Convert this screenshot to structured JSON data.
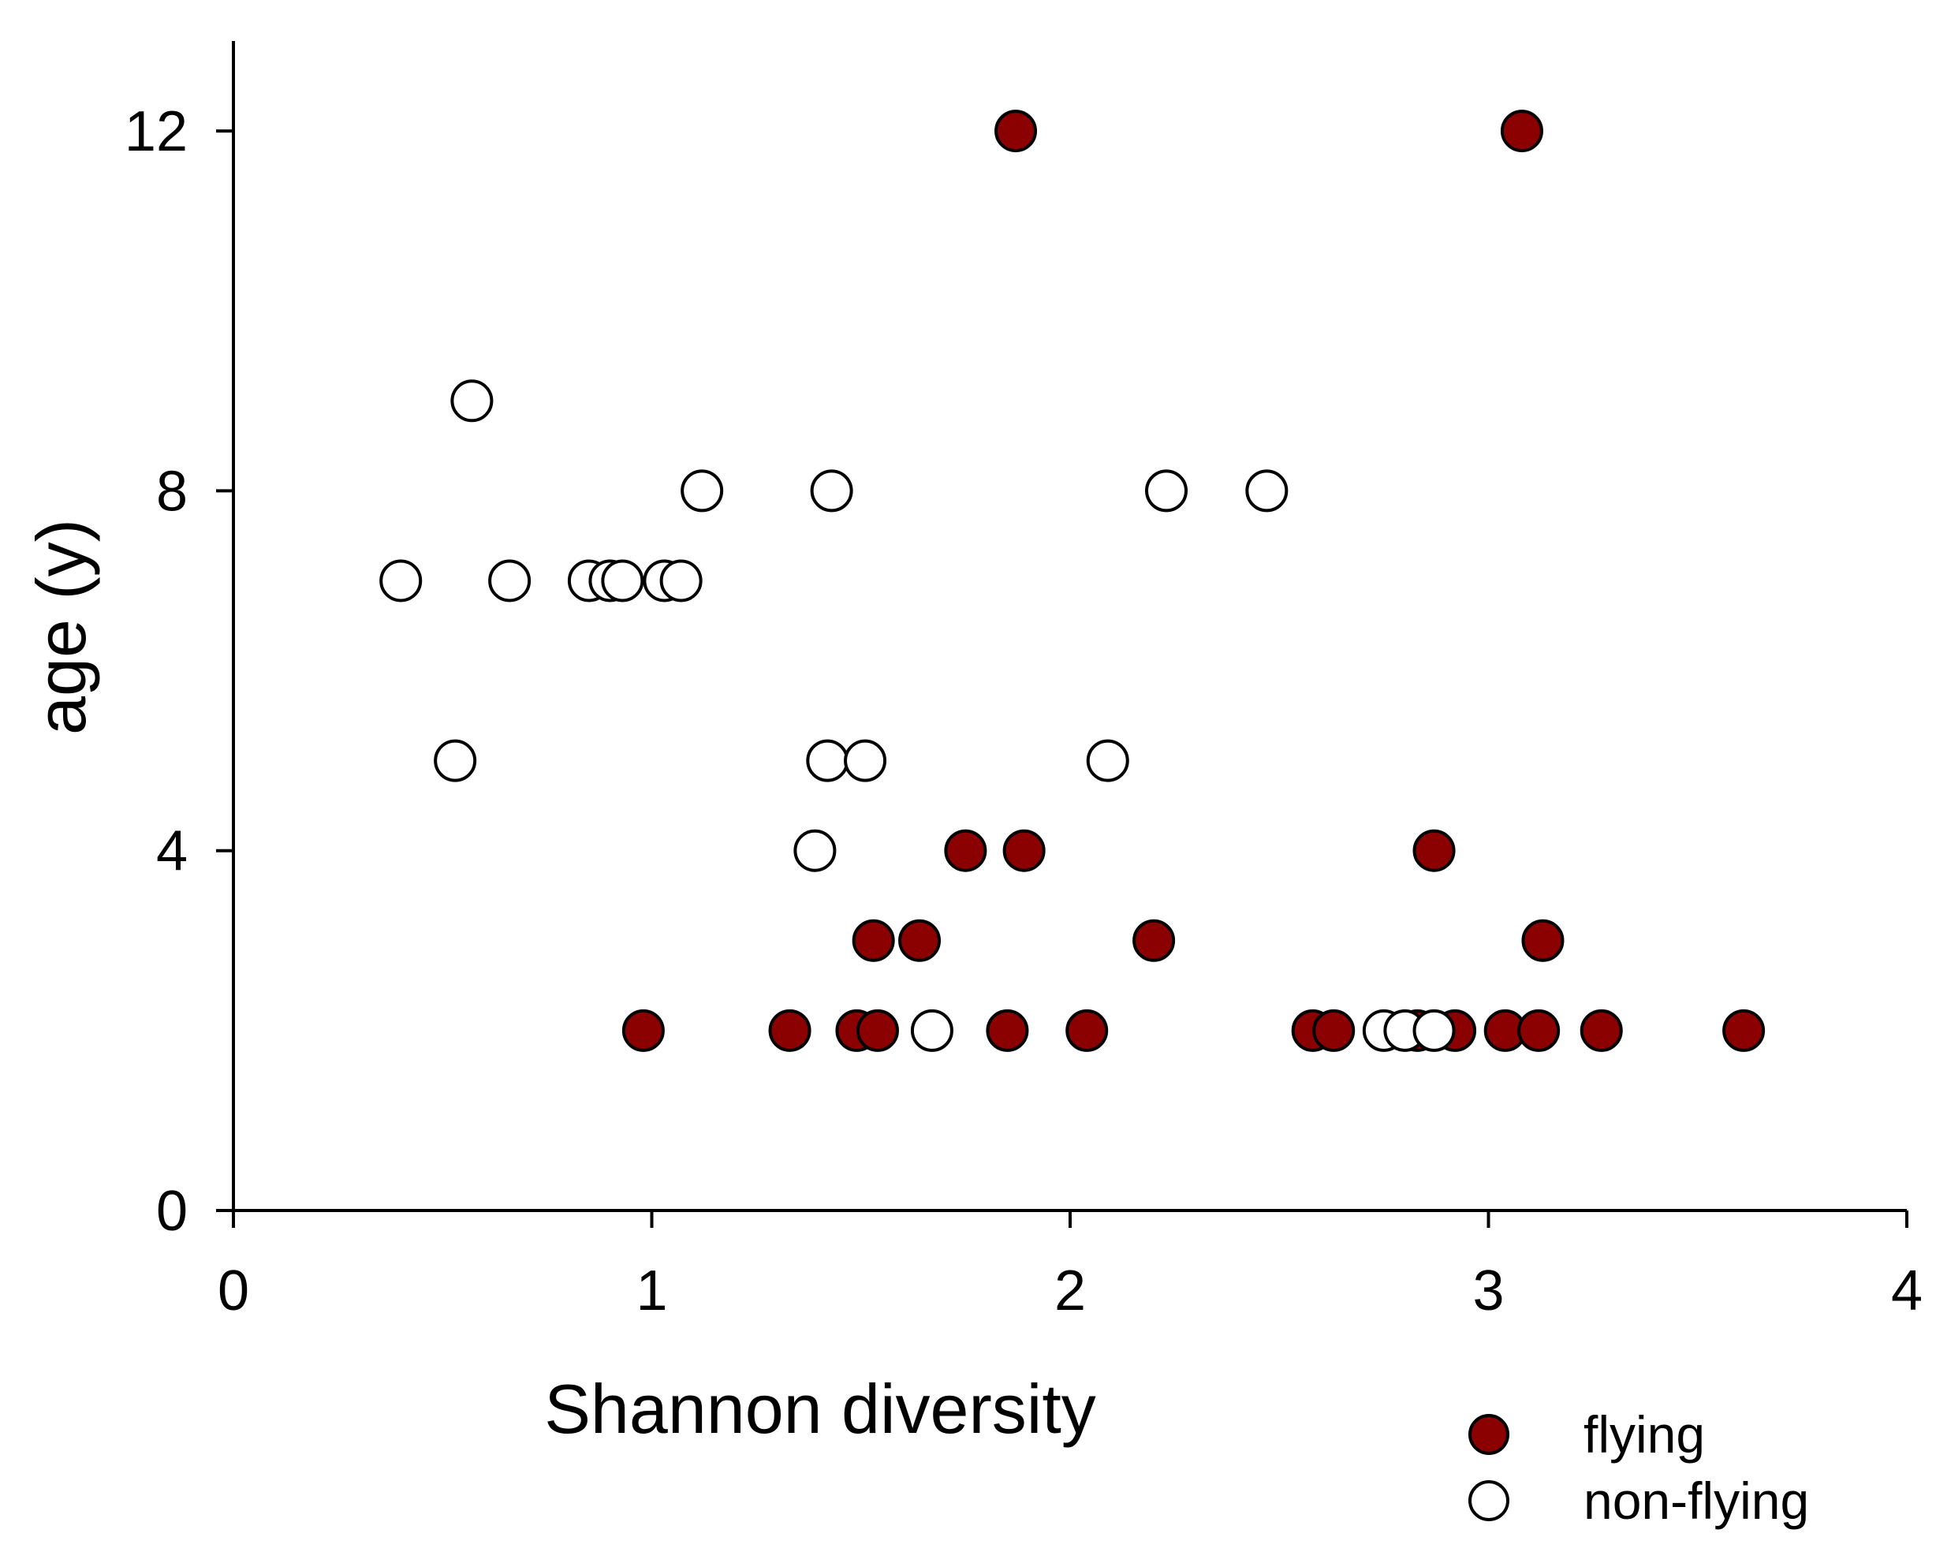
{
  "colors": {
    "flying": "#8b0000",
    "non_flying": "#ffffff",
    "stroke": "#000000"
  },
  "chart_data": {
    "type": "scatter",
    "title": "",
    "xlabel": "Shannon diversity",
    "ylabel": "age (y)",
    "xlim": [
      0,
      4
    ],
    "ylim": [
      0,
      13
    ],
    "xticks": [
      0,
      1,
      2,
      3,
      4
    ],
    "yticks": [
      0,
      4,
      8,
      12
    ],
    "xtick_labels": [
      "0",
      "1",
      "2",
      "3",
      "4"
    ],
    "ytick_labels": [
      "0",
      "4",
      "8",
      "12"
    ],
    "grid": false,
    "legend_position": "bottom-right",
    "series": [
      {
        "name": "flying",
        "label": "flying",
        "fill": "#8b0000",
        "points": [
          {
            "x": 1.87,
            "y": 12
          },
          {
            "x": 3.08,
            "y": 12
          },
          {
            "x": 1.75,
            "y": 4
          },
          {
            "x": 1.89,
            "y": 4
          },
          {
            "x": 2.87,
            "y": 4
          },
          {
            "x": 1.53,
            "y": 3
          },
          {
            "x": 1.64,
            "y": 3
          },
          {
            "x": 2.2,
            "y": 3
          },
          {
            "x": 3.13,
            "y": 3
          },
          {
            "x": 0.98,
            "y": 2
          },
          {
            "x": 1.33,
            "y": 2
          },
          {
            "x": 1.49,
            "y": 2
          },
          {
            "x": 1.54,
            "y": 2
          },
          {
            "x": 1.85,
            "y": 2
          },
          {
            "x": 2.04,
            "y": 2
          },
          {
            "x": 2.58,
            "y": 2
          },
          {
            "x": 2.63,
            "y": 2
          },
          {
            "x": 2.83,
            "y": 2
          },
          {
            "x": 2.92,
            "y": 2
          },
          {
            "x": 3.04,
            "y": 2
          },
          {
            "x": 3.12,
            "y": 2
          },
          {
            "x": 3.27,
            "y": 2
          },
          {
            "x": 3.61,
            "y": 2
          }
        ]
      },
      {
        "name": "non-flying",
        "label": "non-flying",
        "fill": "#ffffff",
        "points": [
          {
            "x": 0.57,
            "y": 9
          },
          {
            "x": 1.12,
            "y": 8
          },
          {
            "x": 1.43,
            "y": 8
          },
          {
            "x": 2.23,
            "y": 8
          },
          {
            "x": 2.47,
            "y": 8
          },
          {
            "x": 0.4,
            "y": 7
          },
          {
            "x": 0.66,
            "y": 7
          },
          {
            "x": 0.85,
            "y": 7
          },
          {
            "x": 0.9,
            "y": 7
          },
          {
            "x": 0.93,
            "y": 7
          },
          {
            "x": 1.03,
            "y": 7
          },
          {
            "x": 1.07,
            "y": 7
          },
          {
            "x": 0.53,
            "y": 5
          },
          {
            "x": 1.42,
            "y": 5
          },
          {
            "x": 1.51,
            "y": 5
          },
          {
            "x": 2.09,
            "y": 5
          },
          {
            "x": 1.39,
            "y": 4
          },
          {
            "x": 1.67,
            "y": 2
          },
          {
            "x": 2.75,
            "y": 2
          },
          {
            "x": 2.8,
            "y": 2
          },
          {
            "x": 2.87,
            "y": 2
          }
        ]
      }
    ]
  }
}
